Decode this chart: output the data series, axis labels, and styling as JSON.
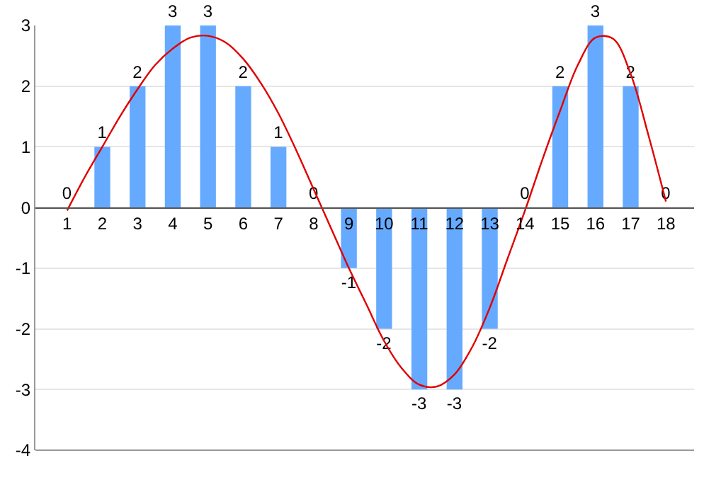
{
  "chart_data": {
    "type": "bar",
    "x": [
      1,
      2,
      3,
      4,
      5,
      6,
      7,
      8,
      9,
      10,
      11,
      12,
      13,
      14,
      15,
      16,
      17,
      18
    ],
    "series": [
      {
        "color": "#66aaff",
        "values": [
          0,
          1,
          2,
          3,
          3,
          2,
          1,
          0,
          -1,
          -2,
          -3,
          -3,
          -2,
          0,
          2,
          3,
          2,
          0
        ],
        "value_labels": [
          "0",
          "1",
          "2",
          "3",
          "3",
          "2",
          "1",
          "0",
          "-1",
          "-2",
          "-3",
          "-3",
          "-2",
          "0",
          "2",
          "3",
          "2",
          "0"
        ]
      },
      {
        "type": "line",
        "color": "#e00000",
        "x": [
          1,
          1.5,
          2,
          2.5,
          3,
          3.5,
          4,
          4.5,
          5,
          5.5,
          6,
          6.5,
          7,
          7.5,
          8,
          8.5,
          9,
          9.5,
          10,
          10.5,
          11,
          11.5,
          12,
          12.5,
          13,
          13.5,
          14,
          14.5,
          15,
          15.5,
          16,
          16.5,
          17,
          17.5,
          18
        ],
        "values": [
          -0.05,
          0.5,
          1.0,
          1.5,
          1.95,
          2.35,
          2.62,
          2.8,
          2.83,
          2.72,
          2.45,
          2.05,
          1.55,
          0.95,
          0.3,
          -0.35,
          -1.0,
          -1.6,
          -2.2,
          -2.65,
          -2.92,
          -2.95,
          -2.75,
          -2.3,
          -1.65,
          -0.85,
          -0.05,
          0.8,
          1.6,
          2.35,
          2.8,
          2.78,
          2.2,
          1.2,
          0.1
        ]
      }
    ],
    "xlim": [
      0.1,
      18.8
    ],
    "xticks": [
      1,
      2,
      3,
      4,
      5,
      6,
      7,
      8,
      9,
      10,
      11,
      12,
      13,
      14,
      15,
      16,
      17,
      18
    ],
    "ylim": [
      -4,
      3
    ],
    "yticks": [
      -4,
      -3,
      -2,
      -1,
      0,
      1,
      2,
      3
    ],
    "grid": "y",
    "legend": false,
    "marker": "none",
    "line_style": "solid"
  }
}
